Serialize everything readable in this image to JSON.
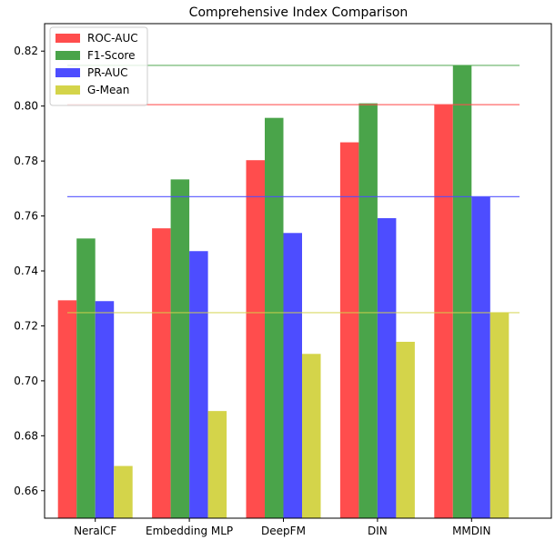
{
  "chart_data": {
    "type": "bar",
    "title": "Comprehensive Index Comparison",
    "xlabel": "",
    "ylabel": "",
    "categories": [
      "NeralCF",
      "Embedding MLP",
      "DeepFM",
      "DIN",
      "MMDIN"
    ],
    "series": [
      {
        "name": "ROC-AUC",
        "color": "#ff4d4d",
        "values": [
          0.7293,
          0.7555,
          0.7803,
          0.7868,
          0.8005
        ]
      },
      {
        "name": "F1-Score",
        "color": "#4aa44a",
        "values": [
          0.7518,
          0.7733,
          0.7957,
          0.801,
          0.8148
        ]
      },
      {
        "name": "PR-AUC",
        "color": "#4d4dff",
        "values": [
          0.729,
          0.7472,
          0.7538,
          0.7592,
          0.767
        ]
      },
      {
        "name": "G-Mean",
        "color": "#d4d44a",
        "values": [
          0.669,
          0.689,
          0.7098,
          0.7142,
          0.7248
        ]
      }
    ],
    "reference_lines": [
      {
        "value": 0.8148,
        "color": "#4aa44a"
      },
      {
        "value": 0.8005,
        "color": "#ff4d4d"
      },
      {
        "value": 0.767,
        "color": "#4d4dff"
      },
      {
        "value": 0.7248,
        "color": "#d4d44a"
      }
    ],
    "ylim": [
      0.65,
      0.83
    ],
    "yticks": [
      "0.66",
      "0.68",
      "0.70",
      "0.72",
      "0.74",
      "0.76",
      "0.78",
      "0.80",
      "0.82"
    ],
    "grid": false,
    "legend_position": "top-left"
  }
}
